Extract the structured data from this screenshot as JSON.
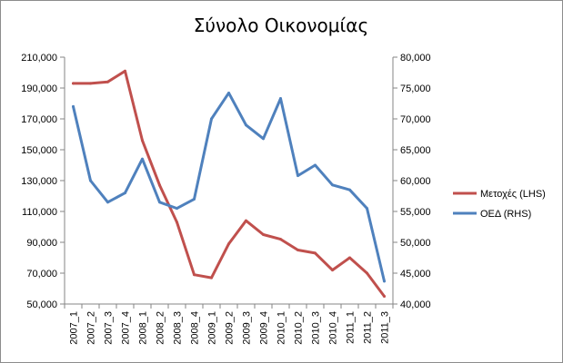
{
  "chart_data": {
    "type": "line",
    "title": "Σύνολο Οικονομίας",
    "categories": [
      "2007_1",
      "2007_2",
      "2007_3",
      "2007_4",
      "2008_1",
      "2008_2",
      "2008_3",
      "2008_4",
      "2009_1",
      "2009_2",
      "2009_3",
      "2009_4",
      "2010_1",
      "2010_2",
      "2010_3",
      "2010_4",
      "2011_1",
      "2011_2",
      "2011_3"
    ],
    "y_left": {
      "min": 50000,
      "max": 210000,
      "step": 20000,
      "tick_labels": [
        "50,000",
        "70,000",
        "90,000",
        "110,000",
        "130,000",
        "150,000",
        "170,000",
        "190,000",
        "210,000"
      ]
    },
    "y_right": {
      "min": 40000,
      "max": 80000,
      "step": 5000,
      "tick_labels": [
        "40,000",
        "45,000",
        "50,000",
        "55,000",
        "60,000",
        "65,000",
        "70,000",
        "75,000",
        "80,000"
      ]
    },
    "series": [
      {
        "name": "Μετοχές (LHS)",
        "axis": "left",
        "color": "#c0504d",
        "values": [
          193000,
          193000,
          194000,
          201000,
          156000,
          127000,
          103000,
          69000,
          67000,
          89000,
          104000,
          95000,
          92000,
          85000,
          83000,
          72000,
          80000,
          70000,
          55000
        ]
      },
      {
        "name": "ΟΕΔ (RHS)",
        "axis": "right",
        "color": "#4f81bd",
        "values": [
          72000,
          60000,
          56500,
          58000,
          63500,
          56500,
          55500,
          57000,
          70000,
          74200,
          69000,
          66800,
          73300,
          60800,
          62500,
          59300,
          58500,
          55500,
          43700
        ]
      }
    ],
    "grid": false,
    "legend_position": "right"
  }
}
